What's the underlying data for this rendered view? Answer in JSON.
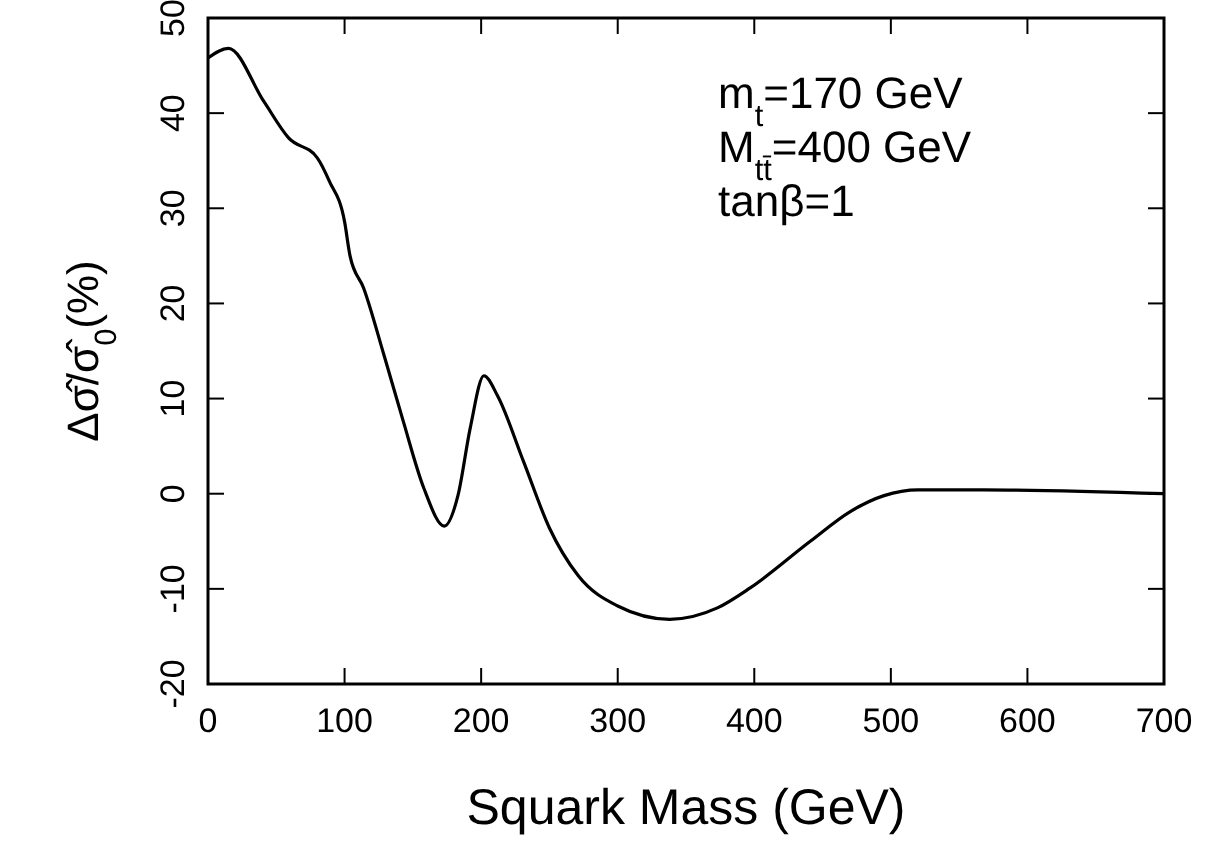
{
  "chart_data": {
    "type": "line",
    "xlabel": "Squark Mass (GeV)",
    "ylabel": "Δσ̂/σ̂$_{0}$(%)",
    "annotations": [
      "m$_{t}$=170  GeV",
      "M$_{tt̄}$=400  GeV",
      "tanβ=1"
    ],
    "xlim": [
      0,
      700
    ],
    "xticks": [
      0,
      100,
      200,
      300,
      400,
      500,
      600,
      700
    ],
    "ylim": [
      -20,
      50
    ],
    "yticks": [
      -20,
      -10,
      0,
      10,
      20,
      30,
      40,
      50
    ],
    "grid": false,
    "series": [
      {
        "color": "#000000",
        "x": [
          0,
          15,
          41,
          59,
          80,
          89,
          100,
          104,
          114,
          129,
          143,
          158,
          173,
          183,
          192,
          202,
          212,
          231,
          250,
          271,
          300,
          338,
          373,
          397,
          441,
          470,
          495,
          520,
          568,
          700
        ],
        "values": [
          45.8,
          46.8,
          41.2,
          37.4,
          35.3,
          32.8,
          28.6,
          25,
          21.6,
          14.5,
          7.6,
          0.6,
          -3.4,
          -0.2,
          6.9,
          12.4,
          10.3,
          3.4,
          -3.6,
          -8.6,
          -11.8,
          -13.2,
          -12,
          -9.9,
          -5,
          -1.9,
          -0.2,
          0.4,
          0.4,
          0
        ]
      }
    ]
  }
}
